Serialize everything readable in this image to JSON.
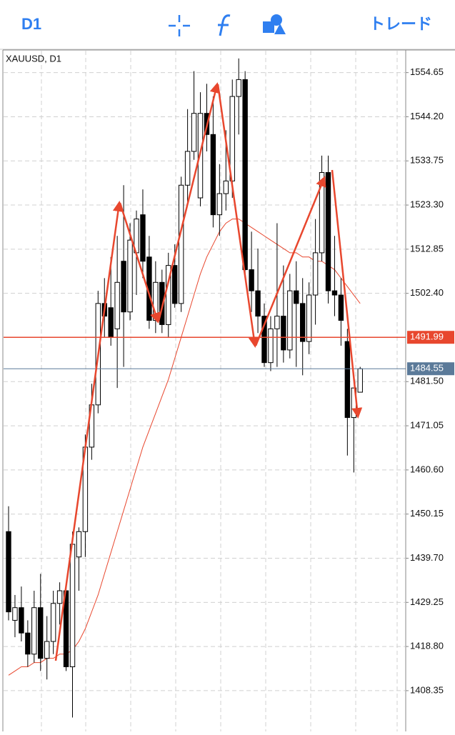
{
  "toolbar": {
    "timeframe": "D1",
    "trade": "トレード"
  },
  "chart_data": {
    "type": "candlestick",
    "title": "XAUUSD, D1",
    "ohlc": [
      [
        1446,
        1452,
        1425,
        1427
      ],
      [
        1425,
        1431,
        1421,
        1428
      ],
      [
        1428,
        1433,
        1420,
        1422
      ],
      [
        1422,
        1425,
        1414,
        1417
      ],
      [
        1417,
        1432,
        1415,
        1428
      ],
      [
        1428,
        1436,
        1413,
        1416
      ],
      [
        1416,
        1426,
        1411,
        1420
      ],
      [
        1420,
        1432,
        1417,
        1429
      ],
      [
        1429,
        1434,
        1424,
        1432
      ],
      [
        1432,
        1434,
        1413,
        1414
      ],
      [
        1414,
        1446,
        1402,
        1443
      ],
      [
        1440,
        1447,
        1432,
        1446
      ],
      [
        1446,
        1469,
        1440,
        1466
      ],
      [
        1466,
        1481,
        1463,
        1476
      ],
      [
        1476,
        1503,
        1474,
        1500
      ],
      [
        1500,
        1506,
        1492,
        1497
      ],
      [
        1499,
        1511,
        1490,
        1492
      ],
      [
        1494,
        1516,
        1480,
        1505
      ],
      [
        1510,
        1528,
        1485,
        1498
      ],
      [
        1498,
        1519,
        1496,
        1515
      ],
      [
        1512,
        1522,
        1502,
        1520
      ],
      [
        1521,
        1527,
        1506,
        1510
      ],
      [
        1511,
        1516,
        1494,
        1496
      ],
      [
        1496,
        1510,
        1493,
        1505
      ],
      [
        1505,
        1508,
        1493,
        1495
      ],
      [
        1495,
        1512,
        1492,
        1509
      ],
      [
        1509,
        1514,
        1499,
        1500
      ],
      [
        1500,
        1530,
        1498,
        1528
      ],
      [
        1528,
        1546,
        1524,
        1536
      ],
      [
        1536,
        1555,
        1534,
        1545
      ],
      [
        1525,
        1550,
        1523,
        1545
      ],
      [
        1545,
        1552,
        1536,
        1540
      ],
      [
        1540,
        1549,
        1518,
        1521
      ],
      [
        1521,
        1533,
        1516,
        1526
      ],
      [
        1526,
        1541,
        1522,
        1529
      ],
      [
        1529,
        1553,
        1525,
        1549
      ],
      [
        1549,
        1558,
        1540,
        1553
      ],
      [
        1553,
        1555,
        1507,
        1508
      ],
      [
        1508,
        1517,
        1498,
        1503
      ],
      [
        1503,
        1513,
        1493,
        1497
      ],
      [
        1497,
        1500,
        1485,
        1486
      ],
      [
        1486,
        1497,
        1484,
        1494
      ],
      [
        1494,
        1519,
        1485,
        1497
      ],
      [
        1497,
        1509,
        1486,
        1489
      ],
      [
        1489,
        1507,
        1487,
        1503
      ],
      [
        1503,
        1510,
        1485,
        1500
      ],
      [
        1500,
        1506,
        1483,
        1491
      ],
      [
        1491,
        1505,
        1488,
        1502
      ],
      [
        1502,
        1520,
        1495,
        1512
      ],
      [
        1512,
        1535,
        1510,
        1531
      ],
      [
        1531,
        1535,
        1500,
        1503
      ],
      [
        1503,
        1516,
        1497,
        1502
      ],
      [
        1502,
        1506,
        1490,
        1496
      ],
      [
        1491,
        1494,
        1464,
        1473
      ],
      [
        1473,
        1480,
        1460,
        1480
      ],
      [
        1479,
        1485,
        1479,
        1484.55
      ]
    ],
    "ma": [
      1412,
      1413,
      1414,
      1414,
      1415,
      1415,
      1416,
      1416,
      1417,
      1417,
      1418,
      1420,
      1423,
      1427,
      1431,
      1436,
      1441,
      1446,
      1451,
      1456,
      1461,
      1466,
      1470,
      1474,
      1478,
      1482,
      1487,
      1492,
      1497,
      1502,
      1507,
      1511,
      1514,
      1517,
      1519,
      1520,
      1520,
      1519,
      1518,
      1517,
      1516,
      1515,
      1514,
      1513,
      1512,
      1512,
      1511,
      1511,
      1510,
      1510,
      1509,
      1508,
      1506,
      1504,
      1502,
      1500
    ],
    "ma_color": "#e8472e",
    "up_color": "#ffffff",
    "down_color": "#000000",
    "ylim": [
      1398.7,
      1560
    ],
    "yticks": [
      1554.65,
      {
        "value": 1544.2,
        "label": "1544.20"
      },
      1533.75,
      {
        "value": 1523.3,
        "label": "1523.30"
      },
      1512.85,
      {
        "value": 1502.4,
        "label": "1502.40"
      },
      {
        "value": 1481.5,
        "label": "1481.50"
      },
      1471.05,
      {
        "value": 1460.6,
        "label": "1460.60"
      },
      1450.15,
      {
        "value": 1439.7,
        "label": "1439.70"
      },
      1429.25,
      {
        "value": 1418.8,
        "label": "1418.80"
      },
      1408.35
    ],
    "hlines": [
      {
        "value": 1491.99,
        "color": "#e8472e"
      },
      {
        "value": 1484.55,
        "color": "#5b7a99"
      }
    ],
    "grid": true
  }
}
